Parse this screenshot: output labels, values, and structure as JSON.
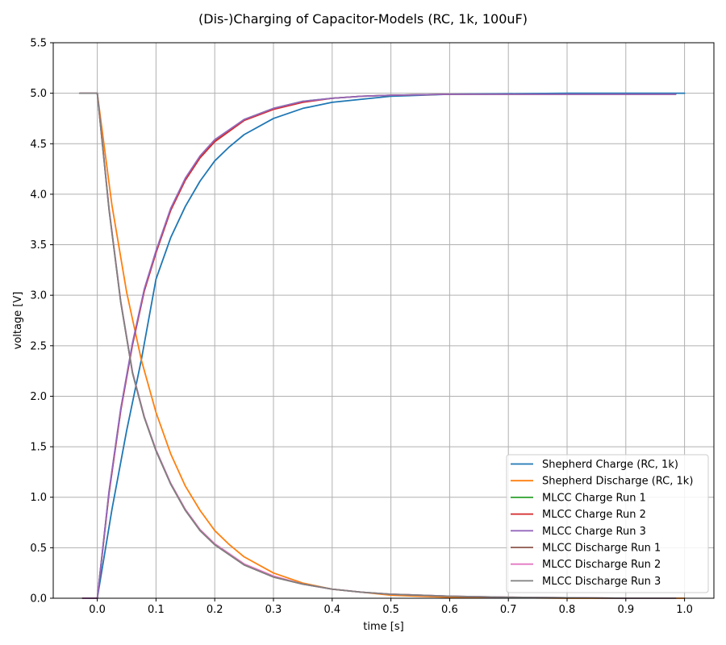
{
  "chart_data": {
    "type": "line",
    "title": "(Dis-)Charging of Capacitor-Models (RC, 1k, 100uF)",
    "xlabel": "time [s]",
    "ylabel": "voltage [V]",
    "xlim": [
      -0.075,
      1.05
    ],
    "ylim": [
      0.0,
      5.5
    ],
    "xticks": [
      0.0,
      0.1,
      0.2,
      0.3,
      0.4,
      0.5,
      0.6,
      0.7,
      0.8,
      0.9,
      1.0
    ],
    "xtick_labels": [
      "0.0",
      "0.1",
      "0.2",
      "0.3",
      "0.4",
      "0.5",
      "0.6",
      "0.7",
      "0.8",
      "0.9",
      "1.0"
    ],
    "yticks": [
      0.0,
      0.5,
      1.0,
      1.5,
      2.0,
      2.5,
      3.0,
      3.5,
      4.0,
      4.5,
      5.0,
      5.5
    ],
    "ytick_labels": [
      "0.0",
      "0.5",
      "1.0",
      "1.5",
      "2.0",
      "2.5",
      "3.0",
      "3.5",
      "4.0",
      "4.5",
      "5.0",
      "5.5"
    ],
    "grid": true,
    "legend_position": "lower-right",
    "series": [
      {
        "name": "Shepherd Charge (RC, 1k)",
        "color": "#1f77b4",
        "x": [
          0,
          0.025,
          0.05,
          0.075,
          0.1,
          0.125,
          0.15,
          0.175,
          0.2,
          0.225,
          0.25,
          0.3,
          0.35,
          0.4,
          0.45,
          0.5,
          0.6,
          0.7,
          0.8,
          0.9,
          1.0
        ],
        "y": [
          0,
          0.88,
          1.66,
          2.36,
          3.16,
          3.57,
          3.88,
          4.13,
          4.33,
          4.47,
          4.59,
          4.75,
          4.85,
          4.91,
          4.94,
          4.97,
          4.99,
          4.995,
          5.0,
          5.0,
          5.0
        ]
      },
      {
        "name": "Shepherd Discharge (RC, 1k)",
        "color": "#ff7f0e",
        "x": [
          0,
          0.025,
          0.05,
          0.075,
          0.1,
          0.125,
          0.15,
          0.175,
          0.2,
          0.225,
          0.25,
          0.3,
          0.35,
          0.4,
          0.45,
          0.5,
          0.6,
          0.7,
          0.8,
          0.9,
          1.0
        ],
        "y": [
          5.0,
          3.89,
          3.03,
          2.36,
          1.84,
          1.43,
          1.11,
          0.87,
          0.67,
          0.53,
          0.41,
          0.25,
          0.15,
          0.09,
          0.06,
          0.03,
          0.01,
          0.005,
          0.0,
          0.0,
          0.0
        ]
      },
      {
        "name": "MLCC Charge Run 1",
        "color": "#2ca02c",
        "x": [
          -0.025,
          0,
          0.02,
          0.04,
          0.06,
          0.08,
          0.1,
          0.125,
          0.15,
          0.175,
          0.2,
          0.25,
          0.3,
          0.35,
          0.4,
          0.45,
          0.5,
          0.6,
          0.7,
          0.8,
          0.9,
          0.985
        ],
        "y": [
          0,
          0,
          1.05,
          1.87,
          2.52,
          3.05,
          3.43,
          3.85,
          4.15,
          4.37,
          4.53,
          4.74,
          4.85,
          4.92,
          4.95,
          4.97,
          4.98,
          4.99,
          4.99,
          4.99,
          4.99,
          4.99
        ]
      },
      {
        "name": "MLCC Charge Run 2",
        "color": "#d62728",
        "x": [
          -0.025,
          0,
          0.02,
          0.04,
          0.06,
          0.08,
          0.1,
          0.125,
          0.15,
          0.175,
          0.2,
          0.25,
          0.3,
          0.35,
          0.4,
          0.45,
          0.5,
          0.6,
          0.7,
          0.8,
          0.9,
          0.985
        ],
        "y": [
          0,
          0,
          1.04,
          1.86,
          2.51,
          3.04,
          3.42,
          3.84,
          4.14,
          4.36,
          4.52,
          4.73,
          4.84,
          4.91,
          4.95,
          4.97,
          4.98,
          4.99,
          4.99,
          4.99,
          4.99,
          4.99
        ]
      },
      {
        "name": "MLCC Charge Run 3",
        "color": "#9467bd",
        "x": [
          -0.025,
          0,
          0.02,
          0.04,
          0.06,
          0.08,
          0.1,
          0.125,
          0.15,
          0.175,
          0.2,
          0.25,
          0.3,
          0.35,
          0.4,
          0.45,
          0.5,
          0.6,
          0.7,
          0.8,
          0.9,
          0.985
        ],
        "y": [
          0,
          0,
          1.06,
          1.88,
          2.53,
          3.06,
          3.44,
          3.86,
          4.16,
          4.38,
          4.54,
          4.74,
          4.85,
          4.92,
          4.95,
          4.97,
          4.98,
          4.99,
          4.99,
          4.99,
          4.99,
          4.99
        ]
      },
      {
        "name": "MLCC Discharge Run 1",
        "color": "#8c564b",
        "x": [
          -0.03,
          0,
          0.02,
          0.04,
          0.06,
          0.08,
          0.1,
          0.125,
          0.15,
          0.175,
          0.2,
          0.25,
          0.3,
          0.35,
          0.4,
          0.45,
          0.5,
          0.6,
          0.7,
          0.8,
          0.9,
          0.985
        ],
        "y": [
          5.0,
          5.0,
          3.85,
          2.93,
          2.23,
          1.79,
          1.46,
          1.13,
          0.87,
          0.67,
          0.53,
          0.33,
          0.21,
          0.14,
          0.09,
          0.06,
          0.04,
          0.02,
          0.01,
          0.005,
          0.0,
          0.0
        ]
      },
      {
        "name": "MLCC Discharge Run 2",
        "color": "#e377c2",
        "x": [
          -0.03,
          0,
          0.02,
          0.04,
          0.06,
          0.08,
          0.1,
          0.125,
          0.15,
          0.175,
          0.2,
          0.25,
          0.3,
          0.35,
          0.4,
          0.45,
          0.5,
          0.6,
          0.7,
          0.8,
          0.9,
          0.985
        ],
        "y": [
          5.0,
          5.0,
          3.86,
          2.94,
          2.24,
          1.8,
          1.47,
          1.14,
          0.88,
          0.68,
          0.54,
          0.34,
          0.22,
          0.14,
          0.09,
          0.06,
          0.04,
          0.02,
          0.01,
          0.005,
          0.0,
          0.0
        ]
      },
      {
        "name": "MLCC Discharge Run 3",
        "color": "#7f7f7f",
        "x": [
          -0.03,
          0,
          0.02,
          0.04,
          0.06,
          0.08,
          0.1,
          0.125,
          0.15,
          0.175,
          0.2,
          0.25,
          0.3,
          0.35,
          0.4,
          0.45,
          0.5,
          0.6,
          0.7,
          0.8,
          0.9,
          0.985
        ],
        "y": [
          5.0,
          5.0,
          3.85,
          2.93,
          2.23,
          1.79,
          1.46,
          1.13,
          0.87,
          0.67,
          0.53,
          0.33,
          0.21,
          0.14,
          0.09,
          0.06,
          0.04,
          0.02,
          0.01,
          0.005,
          0.0,
          0.0
        ]
      }
    ]
  }
}
